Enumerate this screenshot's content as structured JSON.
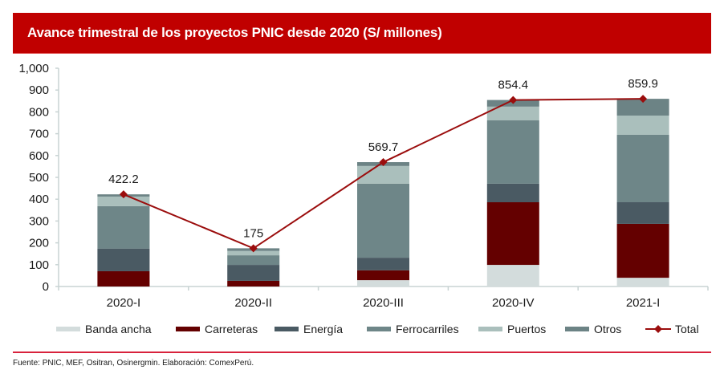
{
  "header": {
    "title": "Avance trimestral de los proyectos PNIC desde 2020 (S/ millones)"
  },
  "footer": {
    "source": "Fuente: PNIC, MEF, Ositran, Osinergmin. Elaboración: ComexPerú."
  },
  "colors": {
    "title_bar": "#c00000",
    "total_line": "#9b0d0d",
    "axis": "#c8d3d3"
  },
  "chart_data": {
    "type": "bar",
    "stacked": true,
    "title": "Avance trimestral de los proyectos PNIC desde 2020 (S/ millones)",
    "xlabel": "",
    "ylabel": "",
    "ylim": [
      0,
      1000
    ],
    "yticks": [
      0,
      100,
      200,
      300,
      400,
      500,
      600,
      700,
      800,
      900,
      1000
    ],
    "ytick_labels": [
      "0",
      "100",
      "200",
      "300",
      "400",
      "500",
      "600",
      "700",
      "800",
      "900",
      "1,000"
    ],
    "grid": false,
    "legend_position": "bottom",
    "categories": [
      "2020-I",
      "2020-II",
      "2020-III",
      "2020-IV",
      "2021-I"
    ],
    "series": [
      {
        "name": "Banda ancha",
        "color": "#d3dcdc",
        "values": [
          0,
          0,
          29,
          99,
          40
        ]
      },
      {
        "name": "Carreteras",
        "color": "#640000",
        "values": [
          70,
          26,
          45,
          287,
          247
        ]
      },
      {
        "name": "Energía",
        "color": "#4a5a63",
        "values": [
          104,
          73,
          58,
          85,
          99
        ]
      },
      {
        "name": "Ferrocarriles",
        "color": "#6e8688",
        "values": [
          194,
          44,
          339,
          290,
          309
        ]
      },
      {
        "name": "Puertos",
        "color": "#aabfbc",
        "values": [
          44,
          20,
          81,
          63,
          88
        ]
      },
      {
        "name": "Otros",
        "color": "#6c8385",
        "values": [
          10.2,
          12,
          17.7,
          30.4,
          76.9
        ]
      }
    ],
    "line_series": {
      "name": "Total",
      "type": "line",
      "color": "#9b0d0d",
      "marker": "diamond",
      "values": [
        422.2,
        175,
        569.7,
        854.4,
        859.9
      ],
      "data_labels": [
        "422.2",
        "175",
        "569.7",
        "854.4",
        "859.9"
      ]
    }
  }
}
